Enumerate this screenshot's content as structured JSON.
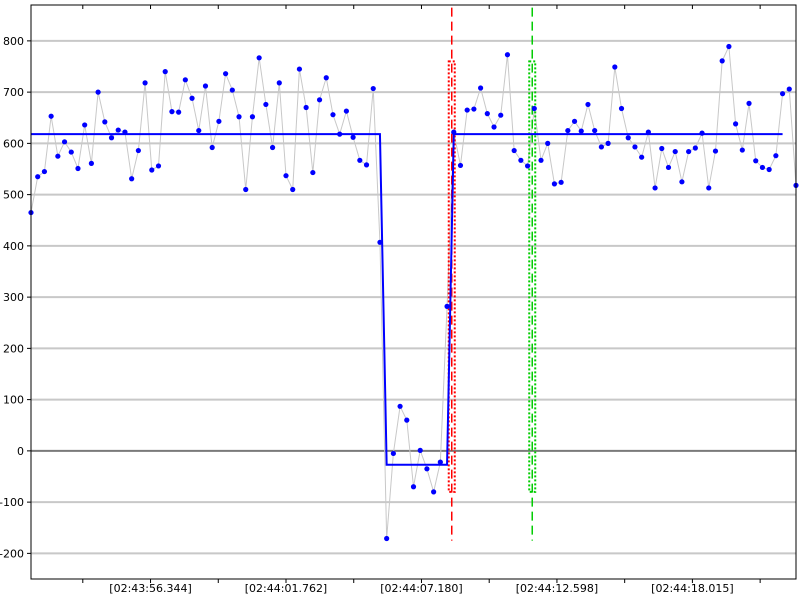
{
  "colors": {
    "background": "#ffffff",
    "grid": "#c8c8c8",
    "zero_line": "#7a7a7a",
    "frame": "#000000",
    "raw_line": "#c8c8c8",
    "points": "#0000ff",
    "fit_line": "#0000ff",
    "marker_red": "#ff0000",
    "marker_green": "#00cc00"
  },
  "chart_data": {
    "type": "line",
    "title": "",
    "xlabel": "",
    "ylabel": "",
    "grid": true,
    "ylim": [
      -250,
      870
    ],
    "y_ticks": [
      -200,
      -100,
      0,
      100,
      200,
      300,
      400,
      500,
      600,
      700,
      800
    ],
    "y_tick_labels": [
      "-200",
      "-100",
      "0",
      "100",
      "200",
      "300",
      "400",
      "500",
      "600",
      "700",
      "800"
    ],
    "x_tick_labels": [
      "[02:43:56.344]",
      "[02:44:01.762]",
      "[02:44:07.180]",
      "[02:44:12.598]",
      "[02:44:18.015]"
    ],
    "x_tick_index": [
      15,
      32,
      49,
      66,
      83
    ],
    "x_range_index": [
      0,
      96
    ],
    "series": [
      {
        "role": "samples",
        "values": [
          465,
          535,
          545,
          653,
          575,
          603,
          583,
          551,
          636,
          561,
          700,
          642,
          611,
          626,
          622,
          531,
          586,
          718,
          548,
          556,
          740,
          662,
          661,
          724,
          688,
          625,
          712,
          592,
          643,
          736,
          704,
          652,
          510,
          652,
          767,
          676,
          592,
          718,
          537,
          510,
          745,
          670,
          543,
          685,
          728,
          656,
          618,
          663,
          612,
          567,
          558,
          707,
          407,
          -171,
          -5,
          87,
          60,
          -70,
          1,
          -35,
          -80,
          -22,
          282,
          622,
          557,
          665,
          667,
          708,
          658,
          632,
          655,
          773,
          586,
          567,
          556,
          668,
          567,
          600,
          521,
          524,
          625,
          643,
          624,
          676,
          625,
          593,
          600,
          749,
          668,
          611,
          593,
          573,
          622,
          513,
          590,
          553,
          584,
          525,
          584,
          591,
          620,
          513,
          585,
          761,
          789,
          638,
          587,
          678,
          566,
          553,
          549,
          576,
          697,
          706,
          518
        ]
      },
      {
        "role": "fit",
        "values": [
          618,
          618,
          618,
          618,
          618,
          618,
          618,
          618,
          618,
          618,
          618,
          618,
          618,
          618,
          618,
          618,
          618,
          618,
          618,
          618,
          618,
          618,
          618,
          618,
          618,
          618,
          618,
          618,
          618,
          618,
          618,
          618,
          618,
          618,
          618,
          618,
          618,
          618,
          618,
          618,
          618,
          618,
          618,
          618,
          618,
          618,
          618,
          618,
          618,
          618,
          618,
          618,
          618,
          -27,
          -27,
          -27,
          -27,
          -27,
          -27,
          -27,
          -27,
          -27,
          -27,
          618,
          618,
          618,
          618,
          618,
          618,
          618,
          618,
          618,
          618,
          618,
          618,
          618,
          618,
          618,
          618,
          618,
          618,
          618,
          618,
          618,
          618,
          618,
          618,
          618,
          618,
          618,
          618,
          618,
          618,
          618,
          618,
          618,
          618,
          618,
          618,
          618,
          618,
          618,
          618,
          618,
          618,
          618,
          618,
          618,
          618,
          618,
          618,
          618,
          618
        ]
      }
    ],
    "markers": [
      {
        "color": "red",
        "x_index": 52.8,
        "y_top": 865,
        "y_bottom": -175
      },
      {
        "color": "green",
        "x_index": 62.9,
        "y_top": 865,
        "y_bottom": -175
      }
    ]
  }
}
